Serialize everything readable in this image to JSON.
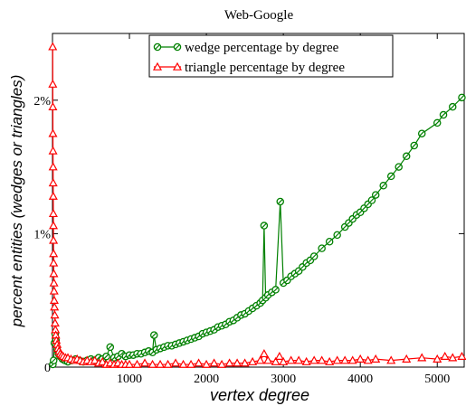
{
  "chart_data": {
    "type": "line",
    "title": "Web-Google",
    "xlabel": "vertex degree",
    "ylabel": "percent entities (wedges or triangles)",
    "xlim": [
      0,
      5350
    ],
    "ylim": [
      0,
      2.5
    ],
    "x_ticks": [
      1000,
      2000,
      3000,
      4000,
      5000
    ],
    "x_tick_labels": [
      "1000",
      "2000",
      "3000",
      "4000",
      "5000"
    ],
    "y_ticks": [
      0,
      1,
      2
    ],
    "y_tick_labels": [
      "0",
      "1%",
      "2%"
    ],
    "grid": false,
    "legend_position": "top-center",
    "series": [
      {
        "name": "wedge percentage by degree",
        "color": "#008000",
        "marker": "circle-slash",
        "points": [
          [
            5,
            0.02
          ],
          [
            15,
            0.05
          ],
          [
            25,
            0.18
          ],
          [
            35,
            0.25
          ],
          [
            45,
            0.2
          ],
          [
            60,
            0.13
          ],
          [
            80,
            0.1
          ],
          [
            100,
            0.08
          ],
          [
            130,
            0.06
          ],
          [
            160,
            0.05
          ],
          [
            200,
            0.04
          ],
          [
            250,
            0.05
          ],
          [
            300,
            0.06
          ],
          [
            350,
            0.05
          ],
          [
            400,
            0.04
          ],
          [
            450,
            0.05
          ],
          [
            500,
            0.06
          ],
          [
            550,
            0.05
          ],
          [
            600,
            0.07
          ],
          [
            650,
            0.06
          ],
          [
            700,
            0.08
          ],
          [
            750,
            0.15
          ],
          [
            800,
            0.07
          ],
          [
            850,
            0.08
          ],
          [
            900,
            0.1
          ],
          [
            950,
            0.08
          ],
          [
            1000,
            0.09
          ],
          [
            1050,
            0.09
          ],
          [
            1100,
            0.1
          ],
          [
            1150,
            0.1
          ],
          [
            1200,
            0.11
          ],
          [
            1250,
            0.12
          ],
          [
            1300,
            0.11
          ],
          [
            1320,
            0.24
          ],
          [
            1350,
            0.13
          ],
          [
            1400,
            0.14
          ],
          [
            1450,
            0.15
          ],
          [
            1500,
            0.16
          ],
          [
            1550,
            0.16
          ],
          [
            1600,
            0.17
          ],
          [
            1650,
            0.18
          ],
          [
            1700,
            0.19
          ],
          [
            1750,
            0.2
          ],
          [
            1800,
            0.21
          ],
          [
            1850,
            0.22
          ],
          [
            1900,
            0.23
          ],
          [
            1950,
            0.25
          ],
          [
            2000,
            0.26
          ],
          [
            2050,
            0.27
          ],
          [
            2100,
            0.28
          ],
          [
            2150,
            0.3
          ],
          [
            2200,
            0.31
          ],
          [
            2250,
            0.32
          ],
          [
            2300,
            0.34
          ],
          [
            2350,
            0.35
          ],
          [
            2400,
            0.37
          ],
          [
            2450,
            0.39
          ],
          [
            2500,
            0.4
          ],
          [
            2550,
            0.42
          ],
          [
            2600,
            0.44
          ],
          [
            2650,
            0.46
          ],
          [
            2700,
            0.48
          ],
          [
            2730,
            0.5
          ],
          [
            2750,
            1.06
          ],
          [
            2770,
            0.52
          ],
          [
            2800,
            0.54
          ],
          [
            2850,
            0.56
          ],
          [
            2900,
            0.58
          ],
          [
            2960,
            1.24
          ],
          [
            3000,
            0.63
          ],
          [
            3050,
            0.65
          ],
          [
            3100,
            0.68
          ],
          [
            3150,
            0.7
          ],
          [
            3200,
            0.72
          ],
          [
            3250,
            0.75
          ],
          [
            3300,
            0.78
          ],
          [
            3350,
            0.8
          ],
          [
            3400,
            0.83
          ],
          [
            3500,
            0.89
          ],
          [
            3600,
            0.94
          ],
          [
            3700,
            0.99
          ],
          [
            3800,
            1.05
          ],
          [
            3850,
            1.08
          ],
          [
            3900,
            1.11
          ],
          [
            3950,
            1.14
          ],
          [
            4000,
            1.16
          ],
          [
            4050,
            1.19
          ],
          [
            4100,
            1.22
          ],
          [
            4150,
            1.25
          ],
          [
            4200,
            1.29
          ],
          [
            4300,
            1.36
          ],
          [
            4400,
            1.43
          ],
          [
            4500,
            1.5
          ],
          [
            4600,
            1.58
          ],
          [
            4700,
            1.66
          ],
          [
            4800,
            1.75
          ],
          [
            5000,
            1.83
          ],
          [
            5080,
            1.89
          ],
          [
            5200,
            1.95
          ],
          [
            5320,
            2.02
          ]
        ]
      },
      {
        "name": "triangle percentage by degree",
        "color": "#ff0000",
        "marker": "triangle",
        "points": [
          [
            3,
            2.4
          ],
          [
            4,
            2.12
          ],
          [
            5,
            1.95
          ],
          [
            6,
            1.75
          ],
          [
            7,
            1.62
          ],
          [
            8,
            1.5
          ],
          [
            9,
            1.38
          ],
          [
            10,
            1.28
          ],
          [
            11,
            1.15
          ],
          [
            12,
            1.06
          ],
          [
            13,
            0.95
          ],
          [
            14,
            0.85
          ],
          [
            15,
            0.78
          ],
          [
            17,
            0.7
          ],
          [
            19,
            0.63
          ],
          [
            21,
            0.57
          ],
          [
            23,
            0.5
          ],
          [
            26,
            0.45
          ],
          [
            30,
            0.39
          ],
          [
            34,
            0.33
          ],
          [
            38,
            0.28
          ],
          [
            43,
            0.24
          ],
          [
            50,
            0.2
          ],
          [
            60,
            0.17
          ],
          [
            70,
            0.14
          ],
          [
            85,
            0.12
          ],
          [
            100,
            0.1
          ],
          [
            120,
            0.09
          ],
          [
            140,
            0.08
          ],
          [
            170,
            0.07
          ],
          [
            200,
            0.07
          ],
          [
            240,
            0.06
          ],
          [
            280,
            0.05
          ],
          [
            320,
            0.06
          ],
          [
            360,
            0.05
          ],
          [
            400,
            0.04
          ],
          [
            450,
            0.05
          ],
          [
            500,
            0.04
          ],
          [
            550,
            0.05
          ],
          [
            600,
            0.03
          ],
          [
            650,
            0.04
          ],
          [
            700,
            0.02
          ],
          [
            750,
            0.03
          ],
          [
            800,
            0.02
          ],
          [
            850,
            0.03
          ],
          [
            900,
            0.02
          ],
          [
            950,
            0.02
          ],
          [
            1000,
            0.02
          ],
          [
            1100,
            0.02
          ],
          [
            1200,
            0.03
          ],
          [
            1300,
            0.02
          ],
          [
            1400,
            0.02
          ],
          [
            1500,
            0.02
          ],
          [
            1600,
            0.03
          ],
          [
            1700,
            0.02
          ],
          [
            1800,
            0.02
          ],
          [
            1900,
            0.03
          ],
          [
            2000,
            0.02
          ],
          [
            2100,
            0.03
          ],
          [
            2200,
            0.02
          ],
          [
            2300,
            0.03
          ],
          [
            2400,
            0.03
          ],
          [
            2500,
            0.03
          ],
          [
            2600,
            0.04
          ],
          [
            2700,
            0.05
          ],
          [
            2750,
            0.1
          ],
          [
            2800,
            0.05
          ],
          [
            2900,
            0.04
          ],
          [
            2950,
            0.08
          ],
          [
            3000,
            0.04
          ],
          [
            3100,
            0.05
          ],
          [
            3200,
            0.05
          ],
          [
            3300,
            0.04
          ],
          [
            3400,
            0.05
          ],
          [
            3500,
            0.05
          ],
          [
            3600,
            0.04
          ],
          [
            3700,
            0.05
          ],
          [
            3800,
            0.05
          ],
          [
            3900,
            0.05
          ],
          [
            4000,
            0.06
          ],
          [
            4100,
            0.05
          ],
          [
            4200,
            0.06
          ],
          [
            4400,
            0.05
          ],
          [
            4600,
            0.06
          ],
          [
            4800,
            0.07
          ],
          [
            5000,
            0.06
          ],
          [
            5100,
            0.08
          ],
          [
            5200,
            0.07
          ],
          [
            5320,
            0.08
          ]
        ]
      }
    ]
  }
}
